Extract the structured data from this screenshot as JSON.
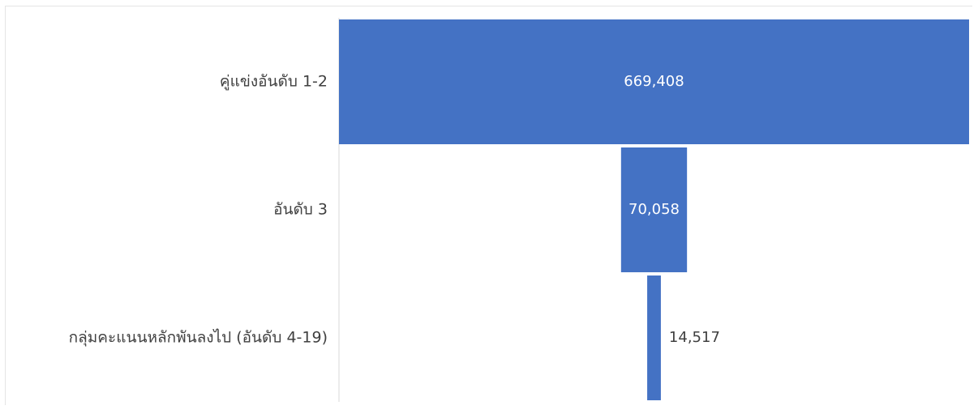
{
  "chart_data": {
    "type": "bar",
    "orientation": "horizontal-funnel",
    "categories": [
      "คู่แข่งอันดับ 1-2",
      "อันดับ 3",
      "กลุ่มคะแนนหลักพันลงไป (อันดับ 4-19)"
    ],
    "values": [
      669408,
      70058,
      14517
    ],
    "value_labels": [
      "669,408",
      "70,058",
      "14,517"
    ],
    "title": "",
    "xlabel": "",
    "ylabel": "",
    "xlim": [
      0,
      669408
    ],
    "grid": false,
    "legend": "none"
  },
  "colors": {
    "bar": "#4472c4",
    "label_inside": "#ffffff",
    "label_outside": "#404040",
    "category_text": "#404040",
    "axis_line": "#d9d9d9"
  }
}
